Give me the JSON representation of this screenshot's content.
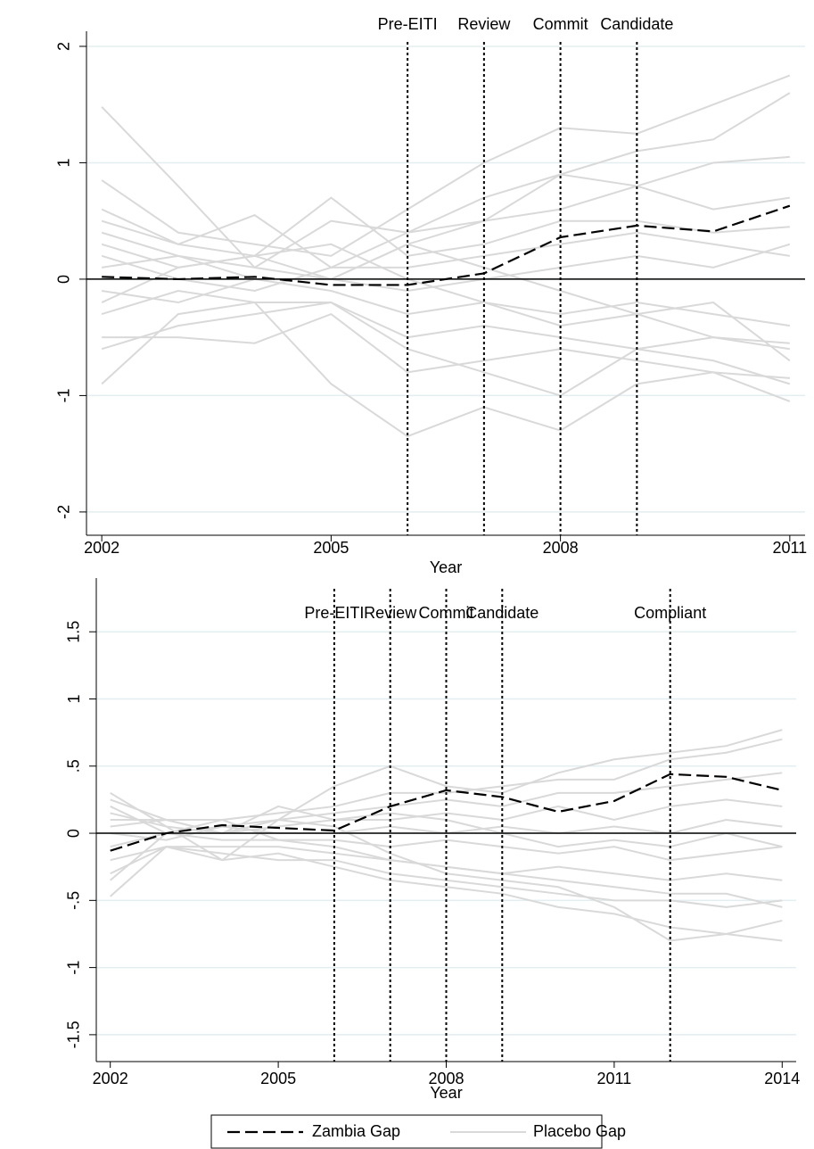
{
  "chart_data": [
    {
      "type": "line",
      "x": [
        2002,
        2003,
        2004,
        2005,
        2006,
        2007,
        2008,
        2009,
        2010,
        2011
      ],
      "xlim": [
        2001.8,
        2011.2
      ],
      "xticks": [
        2002,
        2005,
        2008,
        2011
      ],
      "ylim": [
        -2.2,
        2.13
      ],
      "yticks": [
        -2,
        -1,
        0,
        1,
        2
      ],
      "x_label": "Year",
      "grid": true,
      "events": [
        {
          "x": 2006,
          "label": "Pre-EITI"
        },
        {
          "x": 2007,
          "label": "Review"
        },
        {
          "x": 2008,
          "label": "Commit"
        },
        {
          "x": 2009,
          "label": "Candidate"
        }
      ],
      "series": [
        {
          "name": "Zambia Gap",
          "color": "#000000",
          "values": [
            0.02,
            0,
            0.02,
            -0.05,
            -0.05,
            0.05,
            0.36,
            0.46,
            0.41,
            0.63
          ]
        },
        {
          "name": "Placebo Gap",
          "color": "#d9d9d9",
          "lines": [
            [
              1.48,
              0.8,
              0.1,
              0.0,
              0.3,
              0.5,
              0.9,
              0.8,
              0.6,
              0.7
            ],
            [
              0.85,
              0.4,
              0.3,
              0.2,
              0.6,
              1.0,
              1.3,
              1.25,
              1.5,
              1.75
            ],
            [
              0.6,
              0.3,
              0.55,
              0.1,
              0.4,
              0.7,
              0.9,
              1.1,
              1.2,
              1.6
            ],
            [
              0.4,
              0.2,
              0.1,
              0.5,
              0.4,
              0.5,
              0.6,
              0.8,
              1.0,
              1.05
            ],
            [
              0.3,
              0.1,
              0.2,
              0.7,
              0.2,
              0.3,
              0.5,
              0.5,
              0.4,
              0.45
            ],
            [
              0.2,
              0.0,
              -0.1,
              0.1,
              0.1,
              0.2,
              0.3,
              0.4,
              0.3,
              0.2
            ],
            [
              0.1,
              0.2,
              0.0,
              0.0,
              -0.1,
              0.0,
              0.1,
              0.2,
              0.1,
              0.3
            ],
            [
              -0.1,
              -0.2,
              0.0,
              -0.1,
              -0.3,
              -0.2,
              -0.3,
              -0.2,
              -0.3,
              -0.4
            ],
            [
              -0.3,
              -0.1,
              -0.2,
              -0.2,
              -0.5,
              -0.4,
              -0.5,
              -0.6,
              -0.5,
              -0.6
            ],
            [
              -0.5,
              -0.5,
              -0.55,
              -0.3,
              -0.8,
              -0.7,
              -0.6,
              -0.7,
              -0.8,
              -0.85
            ],
            [
              -0.9,
              -0.3,
              -0.2,
              -0.9,
              -1.35,
              -1.1,
              -1.3,
              -0.9,
              -0.8,
              -1.05
            ],
            [
              -0.6,
              -0.4,
              -0.3,
              -0.2,
              -0.6,
              -0.8,
              -1.0,
              -0.6,
              -0.7,
              -0.9
            ],
            [
              0.5,
              0.3,
              0.2,
              0.3,
              0.0,
              -0.2,
              -0.4,
              -0.3,
              -0.5,
              -0.55
            ],
            [
              -0.2,
              0.1,
              0.2,
              0.0,
              0.3,
              0.1,
              -0.1,
              -0.3,
              -0.2,
              -0.7
            ]
          ]
        }
      ]
    },
    {
      "type": "line",
      "x": [
        2002,
        2003,
        2004,
        2005,
        2006,
        2007,
        2008,
        2009,
        2010,
        2011,
        2012,
        2013,
        2014
      ],
      "xlim": [
        2001.75,
        2014.25
      ],
      "xticks": [
        2002,
        2005,
        2008,
        2011,
        2014
      ],
      "ylim": [
        -1.7,
        1.9
      ],
      "yticks": [
        {
          "value": -1.5,
          "label": "-1.5"
        },
        -1,
        {
          "value": -0.5,
          "label": "-.5"
        },
        0,
        {
          "value": 0.5,
          "label": ".5"
        },
        1,
        1.5
      ],
      "x_label": "Year",
      "grid": true,
      "events": [
        {
          "x": 2006,
          "label": "Pre-EITI"
        },
        {
          "x": 2007,
          "label": "Review"
        },
        {
          "x": 2008,
          "label": "Commit"
        },
        {
          "x": 2009,
          "label": "Candidate"
        },
        {
          "x": 2012,
          "label": "Compliant"
        }
      ],
      "series": [
        {
          "name": "Zambia Gap",
          "color": "#000000",
          "values": [
            -0.13,
            0,
            0.06,
            0.04,
            0.02,
            0.2,
            0.32,
            0.27,
            0.16,
            0.24,
            0.44,
            0.42,
            0.32
          ]
        },
        {
          "name": "Placebo Gap",
          "color": "#d9d9d9",
          "lines": [
            [
              0.3,
              0.05,
              0.0,
              0.1,
              0.35,
              0.5,
              0.35,
              0.3,
              0.45,
              0.55,
              0.6,
              0.65,
              0.77
            ],
            [
              0.25,
              0.1,
              0.1,
              0.15,
              0.2,
              0.3,
              0.3,
              0.35,
              0.4,
              0.4,
              0.55,
              0.6,
              0.7
            ],
            [
              0.2,
              0.0,
              0.05,
              0.1,
              0.15,
              0.2,
              0.25,
              0.2,
              0.3,
              0.3,
              0.35,
              0.4,
              0.45
            ],
            [
              0.1,
              0.1,
              0.0,
              0.05,
              0.1,
              0.1,
              0.15,
              0.1,
              0.2,
              0.1,
              0.2,
              0.25,
              0.2
            ],
            [
              0.0,
              -0.05,
              0.05,
              0.0,
              0.0,
              0.05,
              0.0,
              0.05,
              0.0,
              0.05,
              0.0,
              0.1,
              0.05
            ],
            [
              -0.1,
              0.0,
              -0.05,
              -0.05,
              -0.05,
              -0.1,
              -0.05,
              -0.1,
              -0.15,
              -0.1,
              -0.2,
              -0.15,
              -0.1
            ],
            [
              -0.2,
              -0.1,
              -0.1,
              -0.1,
              -0.15,
              -0.2,
              -0.25,
              -0.3,
              -0.25,
              -0.3,
              -0.35,
              -0.3,
              -0.35
            ],
            [
              -0.3,
              -0.1,
              -0.15,
              -0.2,
              -0.2,
              -0.3,
              -0.35,
              -0.4,
              -0.45,
              -0.5,
              -0.5,
              -0.55,
              -0.5
            ],
            [
              -0.47,
              -0.1,
              -0.2,
              -0.15,
              -0.25,
              -0.35,
              -0.4,
              -0.45,
              -0.55,
              -0.6,
              -0.7,
              -0.75,
              -0.8
            ],
            [
              0.15,
              0.05,
              -0.2,
              0.1,
              0.05,
              -0.15,
              -0.3,
              -0.35,
              -0.4,
              -0.55,
              -0.8,
              -0.75,
              -0.65
            ],
            [
              -0.35,
              0.0,
              0.1,
              -0.05,
              -0.1,
              -0.2,
              -0.25,
              -0.3,
              -0.35,
              -0.4,
              -0.45,
              -0.45,
              -0.55
            ],
            [
              0.05,
              0.1,
              0.0,
              0.2,
              0.1,
              0.15,
              0.1,
              0.0,
              -0.1,
              -0.05,
              -0.1,
              0.0,
              -0.1
            ]
          ]
        }
      ]
    }
  ]
}
